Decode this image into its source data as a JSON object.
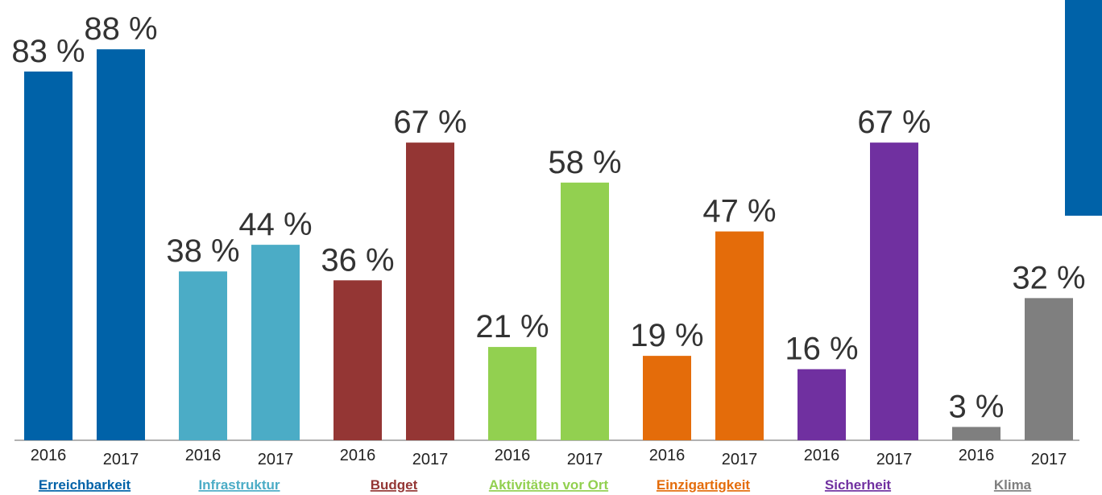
{
  "chart_data": {
    "type": "bar",
    "categories": [
      "Erreichbarkeit",
      "Infrastruktur",
      "Budget",
      "Aktivitäten vor Ort",
      "Einzigartigkeit",
      "Sicherheit",
      "Klima"
    ],
    "colors": [
      "#0062a8",
      "#4bacc6",
      "#943634",
      "#92d050",
      "#e46c0a",
      "#7030a0",
      "#7f7f7f"
    ],
    "series": [
      {
        "name": "2016",
        "values": [
          83,
          38,
          36,
          21,
          19,
          16,
          3
        ],
        "value_labels": [
          "83 %",
          "38 %",
          "36 %",
          "21 %",
          "19 %",
          "16 %",
          "3 %"
        ]
      },
      {
        "name": "2017",
        "values": [
          88,
          44,
          67,
          58,
          47,
          67,
          32
        ],
        "value_labels": [
          "88 %",
          "44 %",
          "67 %",
          "58 %",
          "47 %",
          "67 %",
          "32 %"
        ]
      }
    ],
    "ylim": [
      0,
      100
    ]
  }
}
